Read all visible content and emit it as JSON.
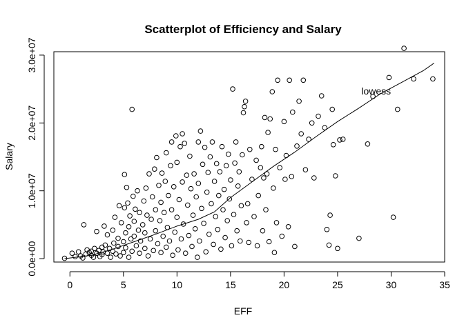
{
  "chart_data": {
    "type": "scatter",
    "title": "Scatterplot of Efficiency and Salary",
    "xlabel": "EFF",
    "ylabel": "Salary",
    "xlim": [
      -1.5,
      35
    ],
    "ylim": [
      -500000,
      30500000
    ],
    "x_ticks": [
      0,
      5,
      10,
      15,
      20,
      25,
      30,
      35
    ],
    "x_tick_labels": [
      "0",
      "5",
      "10",
      "15",
      "20",
      "25",
      "30",
      "35"
    ],
    "y_ticks": [
      0,
      10000000,
      20000000,
      30000000
    ],
    "y_tick_labels": [
      "0.0e+00",
      "1.0e+07",
      "2.0e+07",
      "3.0e+07"
    ],
    "grid": false,
    "point_marker": "open-circle",
    "annotation": {
      "text": "lowess",
      "x": 28.6,
      "y": 24700000
    },
    "lowess": {
      "x": [
        -0.5,
        2,
        4,
        6,
        8,
        10,
        12,
        13.5,
        15,
        17,
        19,
        21,
        23,
        25,
        27,
        29,
        31,
        33,
        34
      ],
      "y": [
        0,
        500000,
        1400000,
        2500000,
        3600000,
        4800000,
        5800000,
        6900000,
        9000000,
        11300000,
        13600000,
        15700000,
        18000000,
        20200000,
        22200000,
        24300000,
        26000000,
        27700000,
        28800000
      ]
    },
    "points": [
      [
        -0.5,
        50000
      ],
      [
        0.2,
        800000
      ],
      [
        0.5,
        300000
      ],
      [
        0.8,
        1000000
      ],
      [
        1.0,
        400000
      ],
      [
        1.2,
        100000
      ],
      [
        1.3,
        5000000
      ],
      [
        1.5,
        700000
      ],
      [
        1.6,
        1300000
      ],
      [
        1.8,
        900000
      ],
      [
        2.0,
        500000
      ],
      [
        2.0,
        1100000
      ],
      [
        2.2,
        200000
      ],
      [
        2.3,
        1500000
      ],
      [
        2.5,
        800000
      ],
      [
        2.5,
        4000000
      ],
      [
        2.7,
        1200000
      ],
      [
        2.8,
        300000
      ],
      [
        3.0,
        1700000
      ],
      [
        3.0,
        600000
      ],
      [
        3.1,
        1000000
      ],
      [
        3.2,
        4800000
      ],
      [
        3.3,
        2000000
      ],
      [
        3.5,
        800000
      ],
      [
        3.5,
        3500000
      ],
      [
        3.7,
        1500000
      ],
      [
        3.8,
        200000
      ],
      [
        4.0,
        4200000
      ],
      [
        4.0,
        1100000
      ],
      [
        4.1,
        2300000
      ],
      [
        4.2,
        6100000
      ],
      [
        4.3,
        700000
      ],
      [
        4.5,
        3000000
      ],
      [
        4.5,
        1800000
      ],
      [
        4.6,
        7800000
      ],
      [
        4.7,
        400000
      ],
      [
        4.8,
        5300000
      ],
      [
        5.0,
        2500000
      ],
      [
        5.0,
        900000
      ],
      [
        5.1,
        7500000
      ],
      [
        5.1,
        12400000
      ],
      [
        5.2,
        3800000
      ],
      [
        5.2,
        1600000
      ],
      [
        5.3,
        10500000
      ],
      [
        5.4,
        8200000
      ],
      [
        5.5,
        200000
      ],
      [
        5.5,
        4700000
      ],
      [
        5.6,
        6300000
      ],
      [
        5.7,
        2900000
      ],
      [
        5.8,
        22000000
      ],
      [
        5.8,
        1100000
      ],
      [
        5.9,
        9200000
      ],
      [
        6.0,
        5500000
      ],
      [
        6.0,
        3300000
      ],
      [
        6.1,
        7300000
      ],
      [
        6.2,
        1900000
      ],
      [
        6.3,
        10000000
      ],
      [
        6.4,
        4200000
      ],
      [
        6.5,
        800000
      ],
      [
        6.5,
        6800000
      ],
      [
        6.6,
        2600000
      ],
      [
        6.8,
        5000000
      ],
      [
        6.9,
        8500000
      ],
      [
        7.0,
        1500000
      ],
      [
        7.0,
        3800000
      ],
      [
        7.1,
        10400000
      ],
      [
        7.2,
        6400000
      ],
      [
        7.3,
        400000
      ],
      [
        7.4,
        12500000
      ],
      [
        7.5,
        2900000
      ],
      [
        7.6,
        5800000
      ],
      [
        7.7,
        9100000
      ],
      [
        7.8,
        1200000
      ],
      [
        7.9,
        13200000
      ],
      [
        8.0,
        4100000
      ],
      [
        8.0,
        7200000
      ],
      [
        8.1,
        14900000
      ],
      [
        8.2,
        2200000
      ],
      [
        8.3,
        10800000
      ],
      [
        8.4,
        5600000
      ],
      [
        8.5,
        900000
      ],
      [
        8.5,
        8300000
      ],
      [
        8.6,
        12600000
      ],
      [
        8.7,
        3300000
      ],
      [
        8.8,
        6800000
      ],
      [
        8.9,
        11400000
      ],
      [
        9.0,
        1700000
      ],
      [
        9.0,
        15600000
      ],
      [
        9.1,
        4600000
      ],
      [
        9.2,
        9300000
      ],
      [
        9.3,
        2600000
      ],
      [
        9.4,
        13700000
      ],
      [
        9.5,
        7200000
      ],
      [
        9.5,
        17200000
      ],
      [
        9.6,
        500000
      ],
      [
        9.7,
        10600000
      ],
      [
        9.8,
        3900000
      ],
      [
        9.9,
        18100000
      ],
      [
        10.0,
        6100000
      ],
      [
        10.0,
        14200000
      ],
      [
        10.1,
        1300000
      ],
      [
        10.2,
        8700000
      ],
      [
        10.3,
        16500000
      ],
      [
        10.4,
        2900000
      ],
      [
        10.5,
        18400000
      ],
      [
        10.5,
        11300000
      ],
      [
        10.6,
        5100000
      ],
      [
        10.7,
        17000000
      ],
      [
        10.8,
        800000
      ],
      [
        10.9,
        12300000
      ],
      [
        11.0,
        7900000
      ],
      [
        11.1,
        3400000
      ],
      [
        11.2,
        15100000
      ],
      [
        11.3,
        10300000
      ],
      [
        11.4,
        1800000
      ],
      [
        11.5,
        6400000
      ],
      [
        11.6,
        12500000
      ],
      [
        11.7,
        4400000
      ],
      [
        11.8,
        9100000
      ],
      [
        11.9,
        200000
      ],
      [
        12.0,
        11100000
      ],
      [
        12.0,
        17200000
      ],
      [
        12.1,
        2600000
      ],
      [
        12.2,
        18800000
      ],
      [
        12.3,
        7400000
      ],
      [
        12.4,
        13900000
      ],
      [
        12.5,
        5200000
      ],
      [
        12.6,
        16400000
      ],
      [
        12.7,
        1000000
      ],
      [
        12.8,
        9800000
      ],
      [
        12.9,
        12700000
      ],
      [
        13.0,
        3600000
      ],
      [
        13.1,
        15000000
      ],
      [
        13.2,
        8100000
      ],
      [
        13.3,
        17200000
      ],
      [
        13.4,
        2100000
      ],
      [
        13.5,
        11400000
      ],
      [
        13.6,
        6200000
      ],
      [
        13.7,
        14000000
      ],
      [
        13.8,
        4300000
      ],
      [
        13.9,
        9300000
      ],
      [
        14.0,
        12800000
      ],
      [
        14.1,
        1400000
      ],
      [
        14.2,
        16500000
      ],
      [
        14.3,
        7200000
      ],
      [
        14.4,
        10200000
      ],
      [
        14.5,
        3100000
      ],
      [
        14.6,
        13700000
      ],
      [
        14.7,
        5600000
      ],
      [
        14.8,
        15400000
      ],
      [
        14.9,
        8800000
      ],
      [
        15.0,
        11600000
      ],
      [
        15.1,
        1900000
      ],
      [
        15.2,
        25000000
      ],
      [
        15.3,
        6500000
      ],
      [
        15.4,
        14100000
      ],
      [
        15.5,
        17200000
      ],
      [
        15.6,
        4100000
      ],
      [
        15.7,
        10700000
      ],
      [
        15.8,
        12800000
      ],
      [
        15.9,
        2600000
      ],
      [
        16.0,
        7800000
      ],
      [
        16.1,
        15300000
      ],
      [
        16.2,
        21500000
      ],
      [
        16.3,
        22400000
      ],
      [
        16.4,
        23200000
      ],
      [
        16.5,
        5300000
      ],
      [
        16.6,
        8100000
      ],
      [
        16.7,
        2400000
      ],
      [
        16.8,
        16100000
      ],
      [
        17.0,
        11700000
      ],
      [
        17.2,
        6200000
      ],
      [
        17.4,
        14500000
      ],
      [
        17.5,
        1900000
      ],
      [
        17.6,
        9300000
      ],
      [
        17.8,
        13400000
      ],
      [
        17.9,
        16500000
      ],
      [
        18.0,
        4100000
      ],
      [
        18.1,
        11900000
      ],
      [
        18.2,
        20800000
      ],
      [
        18.3,
        7200000
      ],
      [
        18.4,
        12500000
      ],
      [
        18.5,
        18600000
      ],
      [
        18.6,
        2500000
      ],
      [
        18.7,
        20600000
      ],
      [
        18.9,
        24600000
      ],
      [
        19.0,
        10400000
      ],
      [
        19.1,
        900000
      ],
      [
        19.2,
        16100000
      ],
      [
        19.3,
        5300000
      ],
      [
        19.4,
        26300000
      ],
      [
        19.6,
        13400000
      ],
      [
        19.8,
        3300000
      ],
      [
        20.0,
        20200000
      ],
      [
        20.1,
        11700000
      ],
      [
        20.2,
        15200000
      ],
      [
        20.4,
        4700000
      ],
      [
        20.5,
        26300000
      ],
      [
        20.7,
        12100000
      ],
      [
        20.8,
        21600000
      ],
      [
        21.0,
        1800000
      ],
      [
        21.2,
        16600000
      ],
      [
        21.4,
        23200000
      ],
      [
        21.6,
        18400000
      ],
      [
        21.8,
        26300000
      ],
      [
        22.0,
        13100000
      ],
      [
        22.3,
        17600000
      ],
      [
        22.6,
        20000000
      ],
      [
        22.8,
        11900000
      ],
      [
        23.2,
        21000000
      ],
      [
        23.5,
        24000000
      ],
      [
        23.8,
        19300000
      ],
      [
        24.0,
        4300000
      ],
      [
        24.2,
        2000000
      ],
      [
        24.3,
        6400000
      ],
      [
        24.5,
        22000000
      ],
      [
        24.6,
        16800000
      ],
      [
        24.8,
        12200000
      ],
      [
        25.0,
        1500000
      ],
      [
        25.2,
        17500000
      ],
      [
        25.5,
        17600000
      ],
      [
        27.0,
        3000000
      ],
      [
        27.8,
        16900000
      ],
      [
        29.8,
        26700000
      ],
      [
        30.2,
        6100000
      ],
      [
        30.6,
        22000000
      ],
      [
        31.2,
        31000000
      ],
      [
        32.1,
        26500000
      ],
      [
        33.9,
        26500000
      ],
      [
        28.3,
        23900000
      ]
    ]
  }
}
